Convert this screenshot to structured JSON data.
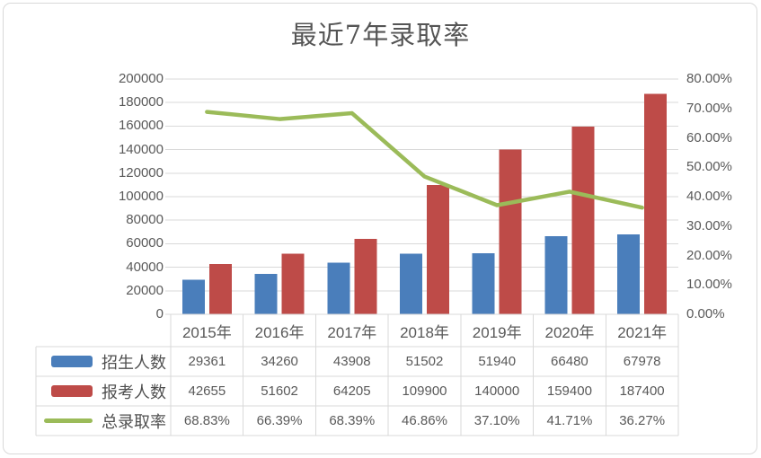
{
  "chart_data": {
    "type": "combo",
    "title": "最近7年录取率",
    "categories": [
      "2015年",
      "2016年",
      "2017年",
      "2018年",
      "2019年",
      "2020年",
      "2021年"
    ],
    "series": [
      {
        "key": "enrollment",
        "name": "招生人数",
        "chart": "bar",
        "axis": "left",
        "color": "#4A7EBB",
        "values": [
          29361,
          34260,
          43908,
          51502,
          51940,
          66480,
          67978
        ],
        "cells": [
          "29361",
          "34260",
          "43908",
          "51502",
          "51940",
          "66480",
          "67978"
        ]
      },
      {
        "key": "applicants",
        "name": "报考人数",
        "chart": "bar",
        "axis": "left",
        "color": "#BE4B48",
        "values": [
          42655,
          51602,
          64205,
          109900,
          140000,
          159400,
          187400
        ],
        "cells": [
          "42655",
          "51602",
          "64205",
          "109900",
          "140000",
          "159400",
          "187400"
        ]
      },
      {
        "key": "admission-rate",
        "name": "总录取率",
        "chart": "line",
        "axis": "right",
        "color": "#9BBB59",
        "values": [
          68.83,
          66.39,
          68.39,
          46.86,
          37.1,
          41.71,
          36.27
        ],
        "cells": [
          "68.83%",
          "66.39%",
          "68.39%",
          "46.86%",
          "37.10%",
          "41.71%",
          "36.27%"
        ]
      }
    ],
    "left_axis": {
      "min": 0,
      "max": 200000,
      "tick_labels": [
        "0",
        "20000",
        "40000",
        "60000",
        "80000",
        "100000",
        "120000",
        "140000",
        "160000",
        "180000",
        "200000"
      ]
    },
    "right_axis": {
      "min": 0,
      "max": 80,
      "tick_labels": [
        "0.00%",
        "10.00%",
        "20.00%",
        "30.00%",
        "40.00%",
        "50.00%",
        "60.00%",
        "70.00%",
        "80.00%"
      ]
    },
    "grid": true,
    "legend_position": "table-rows-left"
  },
  "style": {
    "grid_color": "#D9D9D9",
    "table_border_color": "#D9D9D9",
    "axis_text_color": "#595959",
    "table_text_color": "#595959",
    "title_color": "#555555"
  }
}
